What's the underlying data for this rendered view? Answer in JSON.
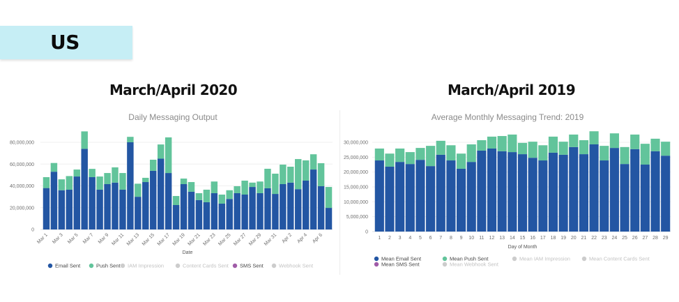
{
  "region": {
    "label": "US"
  },
  "left_period": {
    "title": "March/April 2020"
  },
  "right_period": {
    "title": "March/April 2019"
  },
  "colors": {
    "email": "#2356a3",
    "push": "#62c49b",
    "inactive": "#cccccc",
    "sms": "#a05ca8",
    "banner": "#c6eef5"
  },
  "chart_data": [
    {
      "type": "bar",
      "stacked": true,
      "title": "Daily Messaging Output",
      "xlabel": "Date",
      "ylabel": "",
      "ylim": [
        0,
        90000000
      ],
      "yticks": [
        0,
        20000000,
        40000000,
        60000000,
        80000000
      ],
      "ytick_labels": [
        "0",
        "20,000,000",
        "40,000,000",
        "60,000,000",
        "80,000,000"
      ],
      "grid": true,
      "categories": [
        "Mar 1",
        "Mar 2",
        "Mar 3",
        "Mar 4",
        "Mar 5",
        "Mar 6",
        "Mar 7",
        "Mar 8",
        "Mar 9",
        "Mar 10",
        "Mar 11",
        "Mar 12",
        "Mar 13",
        "Mar 14",
        "Mar 15",
        "Mar 16",
        "Mar 17",
        "Mar 18",
        "Mar 19",
        "Mar 20",
        "Mar 21",
        "Mar 22",
        "Mar 23",
        "Mar 24",
        "Mar 25",
        "Mar 26",
        "Mar 27",
        "Mar 28",
        "Mar 29",
        "Mar 30",
        "Mar 31",
        "Apr 1",
        "Apr 2",
        "Apr 3",
        "Apr 4",
        "Apr 5",
        "Apr 6",
        "Apr 7"
      ],
      "xtick_labels": [
        "Mar 1",
        "Mar 3",
        "Mar 5",
        "Mar 7",
        "Mar 9",
        "Mar 11",
        "Mar 13",
        "Mar 15",
        "Mar 17",
        "Mar 19",
        "Mar 21",
        "Mar 23",
        "Mar 25",
        "Mar 27",
        "Mar 29",
        "Mar 31",
        "Apr 2",
        "Apr 4",
        "Apr 6"
      ],
      "series": [
        {
          "name": "Email Sent",
          "color_key": "email",
          "values": [
            38000000,
            53000000,
            36000000,
            36500000,
            48600000,
            74000000,
            48000000,
            36500000,
            41600000,
            43000000,
            36500000,
            80000000,
            30000000,
            43500000,
            53800000,
            65000000,
            51800000,
            22400000,
            41600000,
            34600000,
            27000000,
            25000000,
            33300000,
            23700000,
            28000000,
            33300000,
            32000000,
            39000000,
            33300000,
            37800000,
            32600000,
            41600000,
            43000000,
            37000000,
            44800000,
            55000000,
            39700000,
            19800000
          ]
        },
        {
          "name": "Push Sent",
          "color_key": "push",
          "values": [
            10000000,
            8000000,
            10000000,
            12500000,
            6400000,
            16000000,
            7600000,
            12100000,
            10200000,
            14000000,
            15300000,
            5000000,
            12000000,
            3900000,
            10200000,
            13000000,
            32700000,
            8300000,
            5100000,
            8900000,
            6300000,
            11500000,
            10700000,
            8300000,
            8000000,
            6400000,
            12800000,
            4000000,
            10700000,
            17900000,
            18600000,
            17900000,
            14600000,
            27600000,
            18600000,
            14000000,
            21100000,
            19200000
          ]
        }
      ],
      "legend": [
        {
          "label": "Email Sent",
          "color_key": "email",
          "active": true
        },
        {
          "label": "Push Sent",
          "color_key": "push",
          "active": true
        },
        {
          "label": "IAM Impression",
          "color_key": "inactive",
          "active": false
        },
        {
          "label": "Content Cards Sent",
          "color_key": "inactive",
          "active": false
        },
        {
          "label": "SMS Sent",
          "color_key": "sms",
          "active": true
        },
        {
          "label": "Webhook Sent",
          "color_key": "inactive",
          "active": false
        }
      ],
      "legend_position": "bottom"
    },
    {
      "type": "bar",
      "stacked": true,
      "title": "Average Monthly Messaging Trend: 2019",
      "xlabel": "Day of Month",
      "ylabel": "",
      "ylim": [
        0,
        34000000
      ],
      "yticks": [
        0,
        5000000,
        10000000,
        15000000,
        20000000,
        25000000,
        30000000
      ],
      "ytick_labels": [
        "0",
        "5,000,000",
        "10,000,000",
        "15,000,000",
        "20,000,000",
        "25,000,000",
        "30,000,000"
      ],
      "grid": true,
      "categories": [
        "1",
        "2",
        "3",
        "4",
        "5",
        "6",
        "7",
        "8",
        "9",
        "10",
        "11",
        "12",
        "13",
        "14",
        "15",
        "16",
        "17",
        "18",
        "19",
        "20",
        "21",
        "22",
        "23",
        "24",
        "25",
        "26",
        "27",
        "28",
        "29"
      ],
      "xtick_labels": [
        "1",
        "2",
        "3",
        "4",
        "5",
        "6",
        "7",
        "8",
        "9",
        "10",
        "11",
        "12",
        "13",
        "14",
        "15",
        "16",
        "17",
        "18",
        "19",
        "20",
        "21",
        "22",
        "23",
        "24",
        "25",
        "26",
        "27",
        "28",
        "29"
      ],
      "series": [
        {
          "name": "Mean Email Sent",
          "color_key": "email",
          "values": [
            23900000,
            21800000,
            23400000,
            22700000,
            24100000,
            22000000,
            25800000,
            23900000,
            21100000,
            23400000,
            27200000,
            27900000,
            27000000,
            26700000,
            26000000,
            24800000,
            23900000,
            26500000,
            25800000,
            28400000,
            26000000,
            29300000,
            23900000,
            28100000,
            22700000,
            27700000,
            22500000,
            27000000,
            25500000
          ]
        },
        {
          "name": "Mean Push Sent",
          "color_key": "push",
          "values": [
            4000000,
            4400000,
            4500000,
            4000000,
            4000000,
            6800000,
            4700000,
            5100000,
            5100000,
            5900000,
            3500000,
            4000000,
            5100000,
            5900000,
            3800000,
            5400000,
            5100000,
            5400000,
            4400000,
            4200000,
            4700000,
            4400000,
            4900000,
            4900000,
            5700000,
            4900000,
            7000000,
            4200000,
            4700000
          ]
        }
      ],
      "legend": [
        {
          "label": "Mean Email Sent",
          "color_key": "email",
          "active": true
        },
        {
          "label": "Mean Push Sent",
          "color_key": "push",
          "active": true
        },
        {
          "label": "Mean IAM Impression",
          "color_key": "inactive",
          "active": false
        },
        {
          "label": "Mean Content Cards Sent",
          "color_key": "inactive",
          "active": false
        },
        {
          "label": "Mean SMS Sent",
          "color_key": "sms",
          "active": true
        },
        {
          "label": "Mean Webhook Sent",
          "color_key": "inactive",
          "active": false
        }
      ],
      "legend_position": "bottom"
    }
  ]
}
